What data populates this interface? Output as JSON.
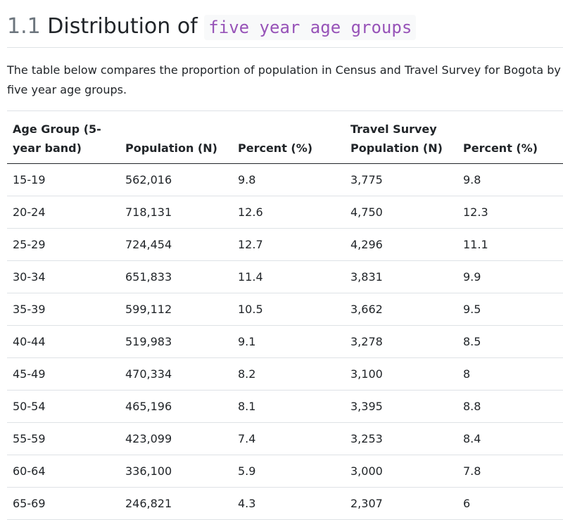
{
  "heading": {
    "number": "1.1",
    "text": "Distribution of",
    "code": "five year age groups"
  },
  "intro": "The table below compares the proportion of population in Census and Travel Survey for Bogota by five year age groups.",
  "table": {
    "headers": [
      "Age Group (5-year band)",
      "Population (N)",
      "Percent (%)",
      "Travel Survey Population (N)",
      "Percent (%)"
    ],
    "rows": [
      [
        "15-19",
        "562,016",
        "9.8",
        "3,775",
        "9.8"
      ],
      [
        "20-24",
        "718,131",
        "12.6",
        "4,750",
        "12.3"
      ],
      [
        "25-29",
        "724,454",
        "12.7",
        "4,296",
        "11.1"
      ],
      [
        "30-34",
        "651,833",
        "11.4",
        "3,831",
        "9.9"
      ],
      [
        "35-39",
        "599,112",
        "10.5",
        "3,662",
        "9.5"
      ],
      [
        "40-44",
        "519,983",
        "9.1",
        "3,278",
        "8.5"
      ],
      [
        "45-49",
        "470,334",
        "8.2",
        "3,100",
        "8"
      ],
      [
        "50-54",
        "465,196",
        "8.1",
        "3,395",
        "8.8"
      ],
      [
        "55-59",
        "423,099",
        "7.4",
        "3,253",
        "8.4"
      ],
      [
        "60-64",
        "336,100",
        "5.9",
        "3,000",
        "7.8"
      ],
      [
        "65-69",
        "246,821",
        "4.3",
        "2,307",
        "6"
      ]
    ]
  }
}
